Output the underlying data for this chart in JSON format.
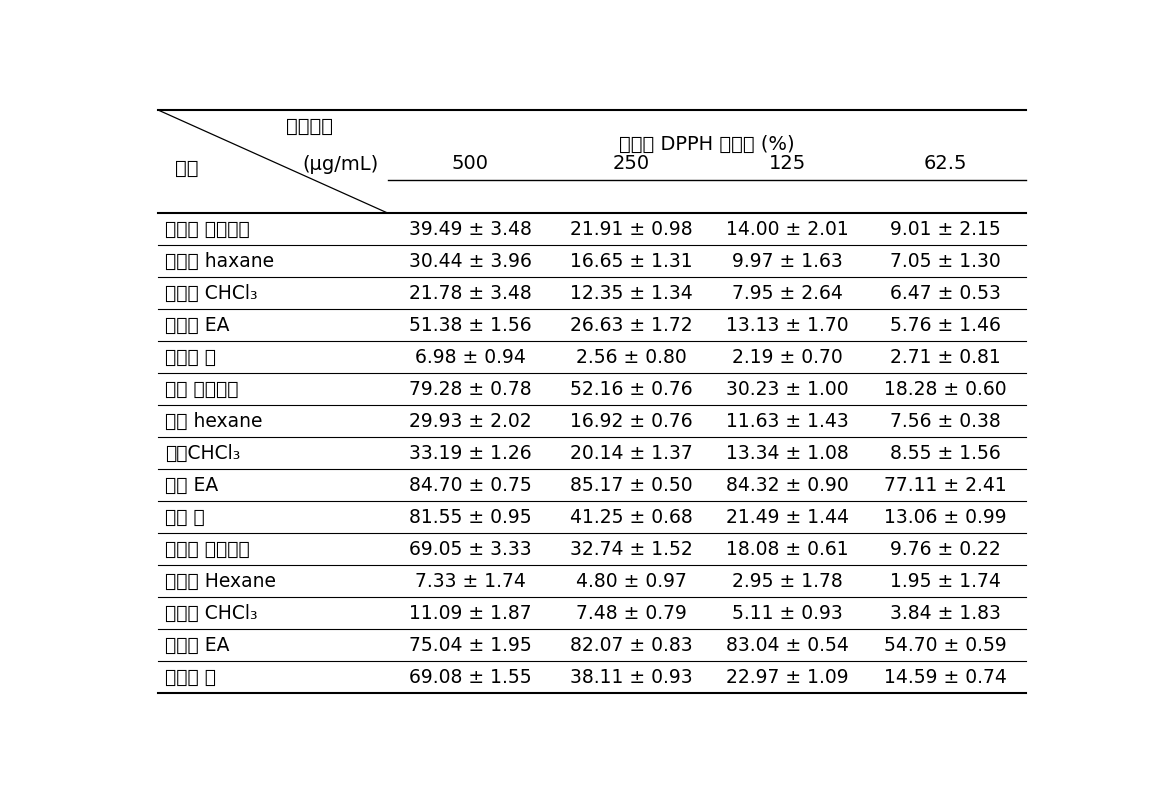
{
  "header_top_left": "쮘리농도",
  "header_mid_left": "시료",
  "header_mid_unit": "(μg/mL)",
  "header_group": "농도별 DPPH 소거율 (%)",
  "col_headers": [
    "500",
    "250",
    "125",
    "62.5"
  ],
  "rows": [
    {
      "label": "파파야 조추출물",
      "values": [
        "39.49 ± 3.48",
        "21.91 ± 0.98",
        "14.00 ± 2.01",
        "9.01 ± 2.15"
      ]
    },
    {
      "label": "파파야 haxane",
      "values": [
        "30.44 ± 3.96",
        "16.65 ± 1.31",
        "9.97 ± 1.63",
        "7.05 ± 1.30"
      ]
    },
    {
      "label": "파파야 CHCl₃",
      "values": [
        "21.78 ± 3.48",
        "12.35 ± 1.34",
        "7.95 ± 2.64",
        "6.47 ± 0.53"
      ]
    },
    {
      "label": "파파야 EA",
      "values": [
        "51.38 ± 1.56",
        "26.63 ± 1.72",
        "13.13 ± 1.70",
        "5.76 ± 1.46"
      ]
    },
    {
      "label": "파파야 물",
      "values": [
        "6.98 ± 0.94",
        "2.56 ± 0.80",
        "2.19 ± 0.70",
        "2.71 ± 0.81"
      ]
    },
    {
      "label": "카둔 조추출물",
      "values": [
        "79.28 ± 0.78",
        "52.16 ± 0.76",
        "30.23 ± 1.00",
        "18.28 ± 0.60"
      ]
    },
    {
      "label": "카둔 hexane",
      "values": [
        "29.93 ± 2.02",
        "16.92 ± 0.76",
        "11.63 ± 1.43",
        "7.56 ± 0.38"
      ]
    },
    {
      "label": "카둔CHCl₃",
      "values": [
        "33.19 ± 1.26",
        "20.14 ± 1.37",
        "13.34 ± 1.08",
        "8.55 ± 1.56"
      ]
    },
    {
      "label": "카둔 EA",
      "values": [
        "84.70 ± 0.75",
        "85.17 ± 0.50",
        "84.32 ± 0.90",
        "77.11 ± 2.41"
      ]
    },
    {
      "label": "카둔 물",
      "values": [
        "81.55 ± 0.95",
        "41.25 ± 0.68",
        "21.49 ± 1.44",
        "13.06 ± 0.99"
      ]
    },
    {
      "label": "공심체 조추출물",
      "values": [
        "69.05 ± 3.33",
        "32.74 ± 1.52",
        "18.08 ± 0.61",
        "9.76 ± 0.22"
      ]
    },
    {
      "label": "공심체 Hexane",
      "values": [
        "7.33 ± 1.74",
        "4.80 ± 0.97",
        "2.95 ± 1.78",
        "1.95 ± 1.74"
      ]
    },
    {
      "label": "공심체 CHCl₃",
      "values": [
        "11.09 ± 1.87",
        "7.48 ± 0.79",
        "5.11 ± 0.93",
        "3.84 ± 1.83"
      ]
    },
    {
      "label": "공심체 EA",
      "values": [
        "75.04 ± 1.95",
        "82.07 ± 0.83",
        "83.04 ± 0.54",
        "54.70 ± 0.59"
      ]
    },
    {
      "label": "공심체 물",
      "values": [
        "69.08 ± 1.55",
        "38.11 ± 0.93",
        "22.97 ± 1.09",
        "14.59 ± 0.74"
      ]
    }
  ],
  "background_color": "#ffffff",
  "text_color": "#000000",
  "line_color": "#000000",
  "font_size": 13.5,
  "header_font_size": 14
}
